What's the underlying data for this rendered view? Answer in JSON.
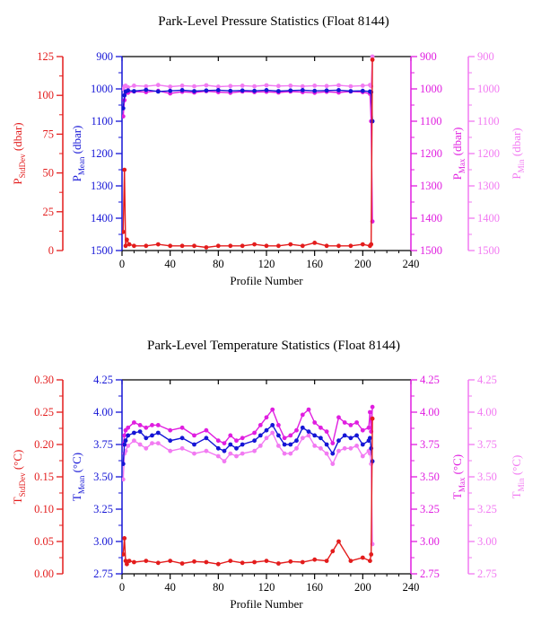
{
  "colors": {
    "stddev": "#e31c1c",
    "mean": "#1515d6",
    "max": "#e01ee0",
    "min": "#f27af2",
    "axis": "#000000"
  },
  "chart_data": [
    {
      "type": "line",
      "title": "Park-Level Pressure Statistics (Float 8144)",
      "xlabel": "Profile Number",
      "xlim": [
        0,
        240
      ],
      "xticks": [
        0,
        40,
        80,
        120,
        160,
        200,
        240
      ],
      "axes": {
        "stddev": {
          "main": "P",
          "sub": "StdDev",
          "unit": " (dbar)",
          "lim": [
            0,
            125
          ],
          "ticks": [
            0,
            25,
            50,
            75,
            100,
            125
          ],
          "reversed": false,
          "side": "left-outer"
        },
        "mean": {
          "main": "P",
          "sub": "Mean",
          "unit": " (dbar)",
          "lim": [
            900,
            1500
          ],
          "ticks": [
            900,
            1000,
            1100,
            1200,
            1300,
            1400,
            1500
          ],
          "reversed": true,
          "side": "left-inner"
        },
        "max": {
          "main": "P",
          "sub": "Max",
          "unit": " (dbar)",
          "lim": [
            900,
            1500
          ],
          "ticks": [
            900,
            1000,
            1100,
            1200,
            1300,
            1400,
            1500
          ],
          "reversed": true,
          "side": "right-inner"
        },
        "min": {
          "main": "P",
          "sub": "Min",
          "unit": " (dbar)",
          "lim": [
            900,
            1500
          ],
          "ticks": [
            900,
            1000,
            1100,
            1200,
            1300,
            1400,
            1500
          ],
          "reversed": true,
          "side": "right-outer"
        }
      },
      "series": [
        {
          "key": "stddev",
          "x": [
            1,
            2,
            3,
            4,
            6,
            10,
            20,
            30,
            40,
            50,
            60,
            70,
            80,
            90,
            100,
            110,
            120,
            130,
            140,
            150,
            160,
            170,
            180,
            190,
            200,
            206,
            207,
            208
          ],
          "values": [
            12,
            52,
            3,
            7,
            4,
            3,
            3,
            4,
            3,
            3,
            3,
            2,
            3,
            3,
            3,
            4,
            3,
            3,
            4,
            3,
            5,
            3,
            3,
            3,
            4,
            3,
            4,
            123
          ]
        },
        {
          "key": "mean",
          "x": [
            1,
            2,
            3,
            5,
            10,
            20,
            30,
            40,
            50,
            60,
            70,
            80,
            90,
            100,
            110,
            120,
            130,
            140,
            150,
            160,
            170,
            180,
            190,
            200,
            206,
            207,
            208
          ],
          "values": [
            1060,
            1020,
            1008,
            1005,
            1007,
            1003,
            1008,
            1006,
            1004,
            1007,
            1005,
            1004,
            1006,
            1005,
            1006,
            1004,
            1007,
            1005,
            1004,
            1006,
            1005,
            1004,
            1007,
            1006,
            1008,
            1010,
            1100
          ]
        },
        {
          "key": "max",
          "x": [
            1,
            2,
            3,
            5,
            10,
            20,
            30,
            40,
            50,
            60,
            70,
            80,
            90,
            100,
            110,
            120,
            130,
            140,
            150,
            160,
            170,
            180,
            190,
            200,
            206,
            207,
            208
          ],
          "values": [
            1085,
            1035,
            1012,
            1012,
            1008,
            1010,
            1006,
            1014,
            1009,
            1011,
            1007,
            1010,
            1012,
            1008,
            1010,
            1009,
            1011,
            1008,
            1010,
            1012,
            1009,
            1011,
            1008,
            1010,
            1015,
            1100,
            1410
          ]
        },
        {
          "key": "min",
          "x": [
            1,
            2,
            3,
            5,
            10,
            20,
            30,
            40,
            50,
            60,
            70,
            80,
            90,
            100,
            110,
            120,
            130,
            140,
            150,
            160,
            170,
            180,
            190,
            200,
            206,
            207,
            208
          ],
          "values": [
            1000,
            992,
            990,
            995,
            990,
            992,
            988,
            993,
            990,
            992,
            989,
            993,
            991,
            990,
            992,
            989,
            991,
            990,
            992,
            990,
            991,
            989,
            992,
            990,
            988,
            992,
            900
          ]
        }
      ]
    },
    {
      "type": "line",
      "title": "Park-Level Temperature Statistics (Float 8144)",
      "xlabel": "Profile Number",
      "xlim": [
        0,
        240
      ],
      "xticks": [
        0,
        40,
        80,
        120,
        160,
        200,
        240
      ],
      "axes": {
        "stddev": {
          "main": "T",
          "sub": "StdDev",
          "unit": " (°C)",
          "lim": [
            0.0,
            0.3
          ],
          "ticks": [
            0.0,
            0.05,
            0.1,
            0.15,
            0.2,
            0.25,
            0.3
          ],
          "ticklabels": [
            "0.00",
            "0.05",
            "0.10",
            "0.15",
            "0.20",
            "0.25",
            "0.30"
          ],
          "reversed": false,
          "side": "left-outer"
        },
        "mean": {
          "main": "T",
          "sub": "Mean",
          "unit": " (°C)",
          "lim": [
            2.75,
            4.25
          ],
          "ticks": [
            2.75,
            3.0,
            3.25,
            3.5,
            3.75,
            4.0,
            4.25
          ],
          "ticklabels": [
            "2.75",
            "3.00",
            "3.25",
            "3.50",
            "3.75",
            "4.00",
            "4.25"
          ],
          "reversed": false,
          "side": "left-inner"
        },
        "max": {
          "main": "T",
          "sub": "Max",
          "unit": " (°C)",
          "lim": [
            2.75,
            4.25
          ],
          "ticks": [
            2.75,
            3.0,
            3.25,
            3.5,
            3.75,
            4.0,
            4.25
          ],
          "ticklabels": [
            "2.75",
            "3.00",
            "3.25",
            "3.50",
            "3.75",
            "4.00",
            "4.25"
          ],
          "reversed": false,
          "side": "right-inner"
        },
        "min": {
          "main": "T",
          "sub": "Min",
          "unit": " (°C)",
          "lim": [
            2.75,
            4.25
          ],
          "ticks": [
            2.75,
            3.0,
            3.25,
            3.5,
            3.75,
            4.0,
            4.25
          ],
          "ticklabels": [
            "2.75",
            "3.00",
            "3.25",
            "3.50",
            "3.75",
            "4.00",
            "4.25"
          ],
          "reversed": false,
          "side": "right-outer"
        }
      },
      "series": [
        {
          "key": "stddev",
          "x": [
            1,
            2,
            3,
            4,
            6,
            10,
            20,
            30,
            40,
            50,
            60,
            70,
            80,
            90,
            100,
            110,
            120,
            130,
            140,
            150,
            160,
            170,
            175,
            180,
            190,
            200,
            206,
            207,
            208
          ],
          "values": [
            0.03,
            0.055,
            0.02,
            0.015,
            0.02,
            0.018,
            0.02,
            0.017,
            0.02,
            0.016,
            0.019,
            0.018,
            0.015,
            0.02,
            0.017,
            0.018,
            0.02,
            0.016,
            0.019,
            0.018,
            0.022,
            0.02,
            0.035,
            0.05,
            0.02,
            0.025,
            0.02,
            0.03,
            0.24
          ]
        },
        {
          "key": "mean",
          "x": [
            1,
            2,
            3,
            5,
            10,
            15,
            20,
            25,
            30,
            40,
            50,
            60,
            70,
            80,
            85,
            90,
            95,
            100,
            110,
            115,
            120,
            125,
            130,
            135,
            140,
            145,
            150,
            155,
            160,
            165,
            170,
            175,
            180,
            185,
            190,
            195,
            200,
            205,
            206,
            207,
            208
          ],
          "values": [
            3.6,
            3.75,
            3.78,
            3.82,
            3.84,
            3.85,
            3.8,
            3.82,
            3.84,
            3.78,
            3.8,
            3.75,
            3.8,
            3.72,
            3.7,
            3.75,
            3.72,
            3.75,
            3.78,
            3.82,
            3.86,
            3.9,
            3.82,
            3.75,
            3.75,
            3.78,
            3.88,
            3.85,
            3.82,
            3.8,
            3.75,
            3.68,
            3.78,
            3.82,
            3.8,
            3.82,
            3.75,
            3.78,
            3.8,
            3.72,
            3.62
          ]
        },
        {
          "key": "max",
          "x": [
            1,
            2,
            3,
            5,
            10,
            15,
            20,
            25,
            30,
            40,
            50,
            60,
            70,
            80,
            85,
            90,
            95,
            100,
            110,
            115,
            120,
            125,
            130,
            135,
            140,
            145,
            150,
            155,
            160,
            165,
            170,
            175,
            180,
            185,
            190,
            195,
            200,
            205,
            206,
            207,
            208
          ],
          "values": [
            3.75,
            3.82,
            3.86,
            3.88,
            3.92,
            3.9,
            3.88,
            3.9,
            3.9,
            3.86,
            3.88,
            3.82,
            3.86,
            3.78,
            3.76,
            3.82,
            3.78,
            3.8,
            3.84,
            3.9,
            3.96,
            4.02,
            3.9,
            3.8,
            3.82,
            3.86,
            3.98,
            4.02,
            3.92,
            3.88,
            3.85,
            3.76,
            3.96,
            3.92,
            3.9,
            3.92,
            3.86,
            3.88,
            4.0,
            3.85,
            4.04
          ]
        },
        {
          "key": "min",
          "x": [
            1,
            2,
            3,
            5,
            10,
            15,
            20,
            25,
            30,
            40,
            50,
            60,
            70,
            80,
            85,
            90,
            95,
            100,
            110,
            115,
            120,
            125,
            130,
            135,
            140,
            145,
            150,
            155,
            160,
            165,
            170,
            175,
            180,
            185,
            190,
            195,
            200,
            205,
            206,
            207,
            208
          ],
          "values": [
            3.48,
            3.68,
            3.7,
            3.74,
            3.78,
            3.75,
            3.72,
            3.76,
            3.76,
            3.7,
            3.72,
            3.68,
            3.7,
            3.66,
            3.62,
            3.68,
            3.66,
            3.68,
            3.7,
            3.74,
            3.8,
            3.84,
            3.74,
            3.68,
            3.68,
            3.72,
            3.8,
            3.82,
            3.74,
            3.72,
            3.68,
            3.6,
            3.7,
            3.72,
            3.72,
            3.74,
            3.66,
            3.7,
            3.68,
            3.6,
            2.98
          ]
        }
      ]
    }
  ]
}
